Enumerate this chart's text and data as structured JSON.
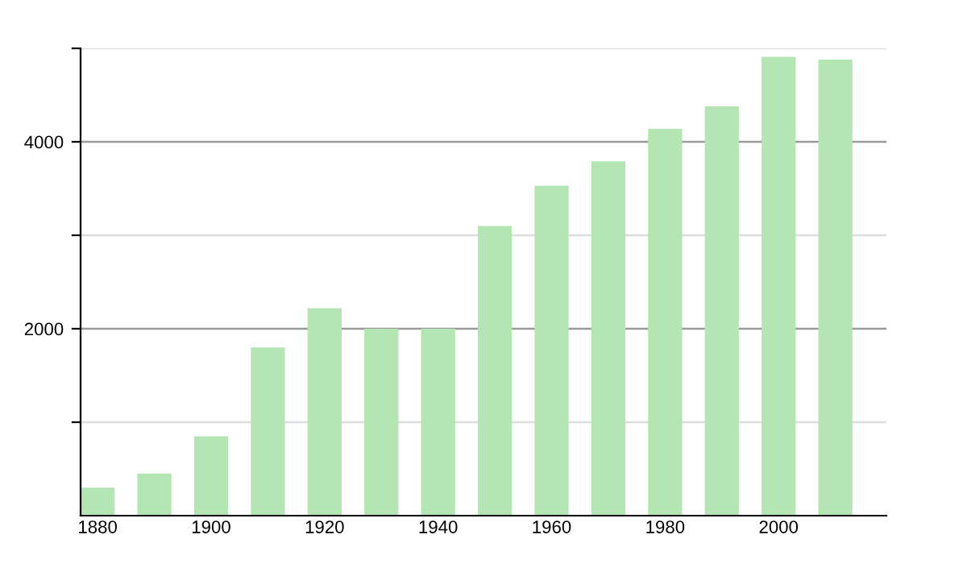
{
  "chart_data": {
    "type": "bar",
    "x": [
      1880,
      1890,
      1900,
      1910,
      1920,
      1930,
      1940,
      1950,
      1960,
      1970,
      1980,
      1990,
      2000,
      2010
    ],
    "values": [
      300,
      450,
      850,
      1800,
      2220,
      2000,
      2000,
      3100,
      3530,
      3790,
      4140,
      4380,
      4910,
      4880
    ],
    "color": "#b3e6b3",
    "xlim": [
      1877,
      2019
    ],
    "xticks": [
      1880,
      1900,
      1920,
      1940,
      1960,
      1980,
      2000
    ],
    "ylim": [
      0,
      5000
    ],
    "yticks": [
      {
        "value": 1000,
        "label": null
      },
      2000,
      {
        "value": 3000,
        "label": null
      },
      4000,
      {
        "value": 5000,
        "label": null
      }
    ],
    "grid": "y",
    "legend": false
  }
}
